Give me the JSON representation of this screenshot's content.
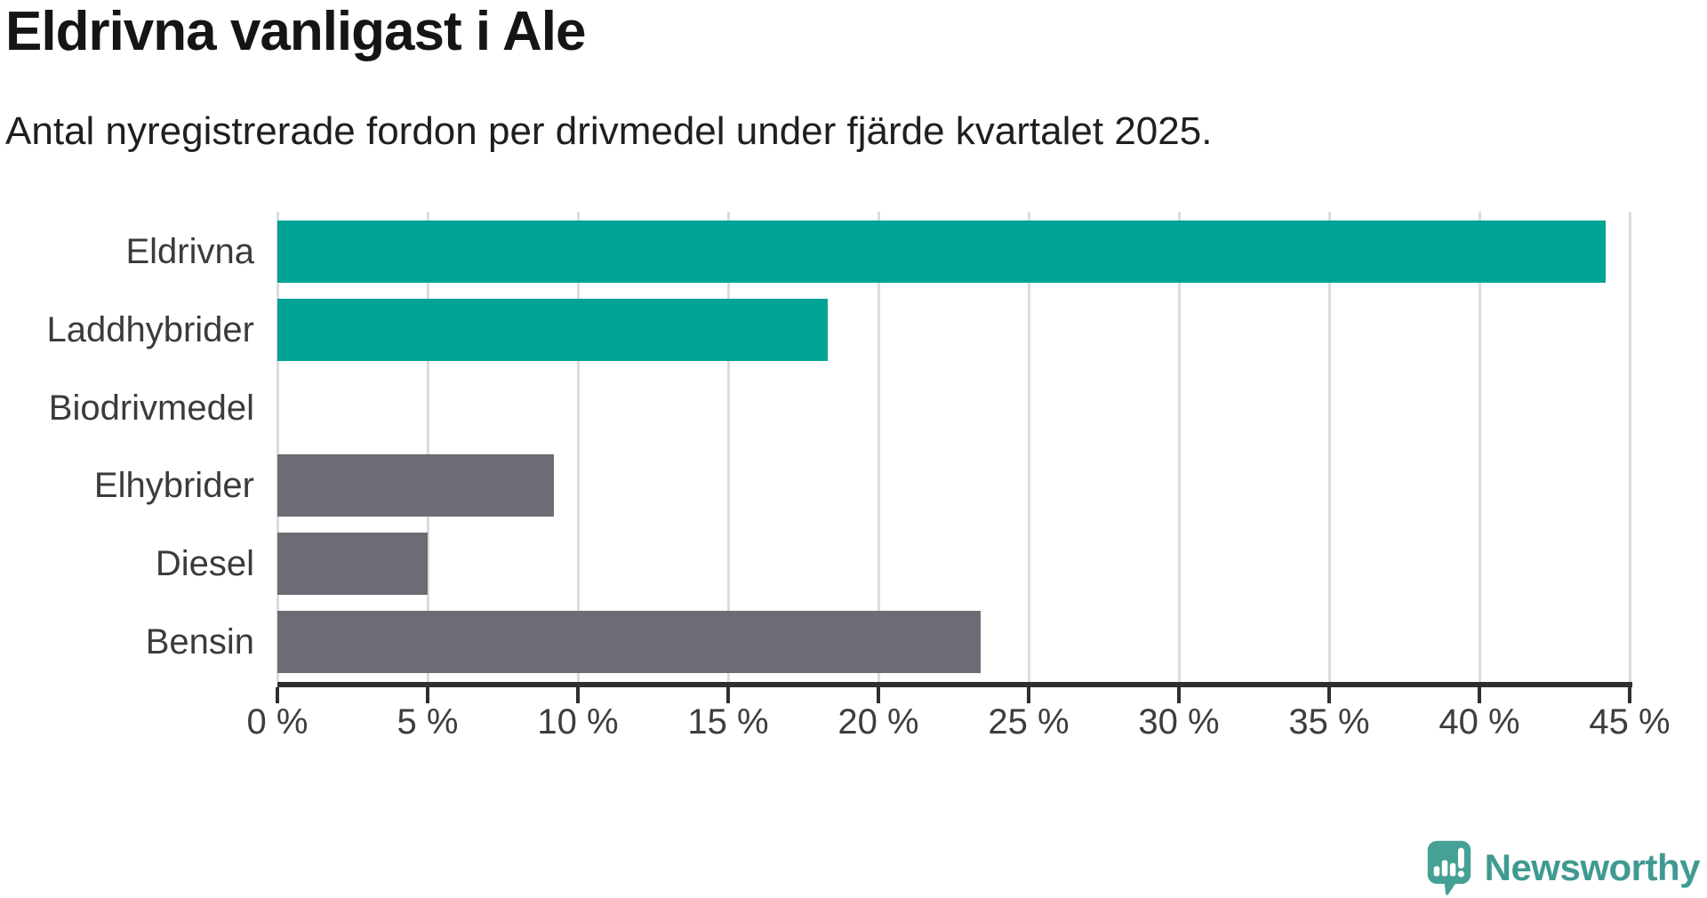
{
  "header": {
    "title": "Eldrivna vanligast i Ale",
    "subtitle": "Antal nyregistrerade fordon per drivmedel under fjärde kvartalet 2025."
  },
  "chart_data": {
    "type": "bar",
    "orientation": "horizontal",
    "title": "Eldrivna vanligast i Ale",
    "subtitle": "Antal nyregistrerade fordon per drivmedel under fjärde kvartalet 2025.",
    "categories": [
      "Eldrivna",
      "Laddhybrider",
      "Biodrivmedel",
      "Elhybrider",
      "Diesel",
      "Bensin"
    ],
    "values": [
      44.2,
      18.3,
      0,
      9.2,
      5,
      23.4
    ],
    "unit": "%",
    "bar_colors": [
      "#00a396",
      "#00a396",
      "#00a396",
      "#6c6c74",
      "#6c6c74",
      "#6c6c74"
    ],
    "xlim": [
      0,
      45
    ],
    "x_ticks": [
      0,
      5,
      10,
      15,
      20,
      25,
      30,
      35,
      40,
      45
    ],
    "tick_suffix": " %",
    "grid": true,
    "legend": false
  },
  "colors": {
    "teal": "#00a396",
    "gray": "#6c6c74",
    "grid": "#dcdcdc",
    "axis": "#2f2f2f",
    "logo_icon": "#45a095",
    "logo_text": "#3f9a91"
  },
  "branding": {
    "logo_text": "Newsworthy"
  }
}
